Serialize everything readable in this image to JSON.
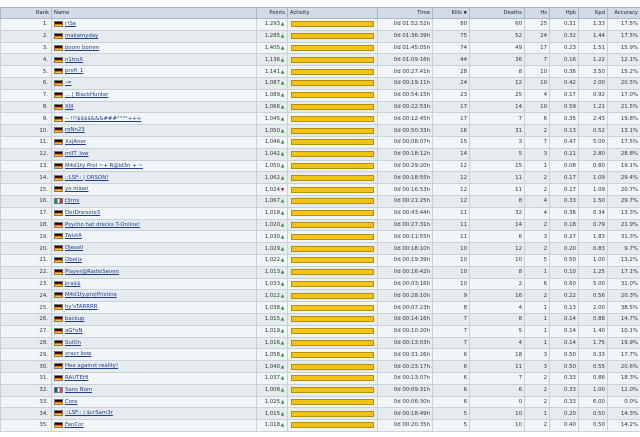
{
  "columns": {
    "rank": "Rank",
    "name": "Name",
    "points": "Points",
    "activity": "Activity",
    "time": "Time",
    "kills": "Kills",
    "deaths": "Deaths",
    "hs": "Hs",
    "hpk": "Hpk",
    "kd": "Kpd",
    "accuracy": "Accuracy",
    "sort_arrow": "▼"
  },
  "trend_symbols": {
    "up": "▲",
    "down": "▼"
  },
  "players": [
    {
      "rank": "1.",
      "flag": "de",
      "name": "r!Se",
      "points": "1,293",
      "trend": "up",
      "activity": 1.0,
      "time": "0d 01:52:52h",
      "kills": "80",
      "deaths": "60",
      "hs": "25",
      "hpk": "0.31",
      "kd": "1.33",
      "acc": "17.5%"
    },
    {
      "rank": "2.",
      "flag": "de",
      "name": "makamyday",
      "points": "1,285",
      "trend": "up",
      "activity": 1.0,
      "time": "0d 01:36:39h",
      "kills": "75",
      "deaths": "52",
      "hs": "24",
      "deaths2": "",
      "hpk": "0.32",
      "kd": "1.44",
      "acc": "17.5%"
    },
    {
      "rank": "3.",
      "flag": "de",
      "name": "boom bomm",
      "points": "1,405",
      "trend": "up",
      "activity": 1.0,
      "time": "0d 01:45:05h",
      "kills": "74",
      "deaths": "49",
      "hs": "17",
      "hpk": "0.23",
      "kd": "1.51",
      "acc": "15.9%"
    },
    {
      "rank": "4.",
      "flag": "de",
      "name": "n1troX",
      "points": "1,136",
      "trend": "up",
      "activity": 1.0,
      "time": "0d 01:09:16h",
      "kills": "44",
      "deaths": "36",
      "hs": "7",
      "hpk": "0.16",
      "kd": "1.22",
      "acc": "12.1%"
    },
    {
      "rank": "5.",
      "flag": "de",
      "name": "profi_1",
      "points": "1,141",
      "trend": "up",
      "activity": 1.0,
      "time": "0d 00:27:41h",
      "kills": "28",
      "deaths": "8",
      "hs": "10",
      "hpk": "0.36",
      "kd": "3.50",
      "acc": "15.2%"
    },
    {
      "rank": "6.",
      "flag": "de",
      "name": "-=",
      "points": "1,087",
      "trend": "up",
      "activity": 1.0,
      "time": "0d 00:19:11h",
      "kills": "24",
      "deaths": "12",
      "hs": "10",
      "hpk": "0.42",
      "kd": "2.00",
      "acc": "20.5%"
    },
    {
      "rank": "7.",
      "flag": "de",
      "name": "... | BlackHunter",
      "points": "1,089",
      "trend": "up",
      "activity": 1.0,
      "time": "0d 00:54:15h",
      "kills": "23",
      "deaths": "25",
      "hs": "4",
      "hpk": "0.17",
      "kd": "0.92",
      "acc": "17.0%"
    },
    {
      "rank": "8.",
      "flag": "de",
      "name": "XIII",
      "points": "1,066",
      "trend": "up",
      "activity": 1.0,
      "time": "0d 00:22:53h",
      "kills": "17",
      "deaths": "14",
      "hs": "10",
      "hpk": "0.59",
      "kd": "1.21",
      "acc": "21.5%"
    },
    {
      "rank": "9.",
      "flag": "de",
      "name": "-- !!!$$$$&&&###°°°°+++",
      "points": "1,045",
      "trend": "up",
      "activity": 1.0,
      "time": "0d 00:12:45h",
      "kills": "17",
      "deaths": "7",
      "hs": "6",
      "hpk": "0.35",
      "kd": "2.43",
      "acc": "19.8%"
    },
    {
      "rank": "10.",
      "flag": "de",
      "name": "roNn23",
      "points": "1,050",
      "trend": "up",
      "activity": 1.0,
      "time": "0d 00:50:33h",
      "kills": "16",
      "deaths": "31",
      "hs": "2",
      "hpk": "0.13",
      "kd": "0.52",
      "acc": "13.1%"
    },
    {
      "rank": "11.",
      "flag": "de",
      "name": "XxjAner",
      "points": "1,046",
      "trend": "up",
      "activity": 1.0,
      "time": "0d 00:08:07h",
      "kills": "15",
      "deaths": "3",
      "hs": "7",
      "hpk": "0.47",
      "kd": "5.00",
      "acc": "17.5%"
    },
    {
      "rank": "12.",
      "flag": "de",
      "name": "mlIT_low",
      "points": "1,042",
      "trend": "up",
      "activity": 1.0,
      "time": "0d 00:18:12h",
      "kills": "14",
      "deaths": "5",
      "hs": "3",
      "hpk": "0.21",
      "kd": "2.80",
      "acc": "28.8%"
    },
    {
      "rank": "13.",
      "flag": "de",
      "name": "M4d1ty Prol ~+ R@ld3n + ~",
      "points": "1,050",
      "trend": "up",
      "activity": 1.0,
      "time": "0d 00:29:20h",
      "kills": "12",
      "deaths": "15",
      "hs": "1",
      "hpk": "0.08",
      "kd": "0.80",
      "acc": "19.1%"
    },
    {
      "rank": "14.",
      "flag": "de",
      "name": "::LSF:: | ORSON!",
      "points": "1,062",
      "trend": "up",
      "activity": 1.0,
      "time": "0d 00:18:55h",
      "kills": "12",
      "deaths": "11",
      "hs": "2",
      "hpk": "0.17",
      "kd": "1.09",
      "acc": "29.4%"
    },
    {
      "rank": "15.",
      "flag": "de",
      "name": "yo maan",
      "points": "1,024",
      "trend": "down",
      "activity": 1.0,
      "time": "0d 00:16:53h",
      "kills": "12",
      "deaths": "11",
      "hs": "2",
      "hpk": "0.17",
      "kd": "1.09",
      "acc": "20.7%"
    },
    {
      "rank": "16.",
      "flag": "it",
      "name": "t3rmi",
      "points": "1,067",
      "trend": "up",
      "activity": 1.0,
      "time": "0d 00:21:25h",
      "kills": "12",
      "deaths": "8",
      "hs": "4",
      "hpk": "0.33",
      "kd": "1.50",
      "acc": "29.7%"
    },
    {
      "rank": "17.",
      "flag": "de",
      "name": "DerDreisste3",
      "points": "1,018",
      "trend": "up",
      "activity": 1.0,
      "time": "0d 00:43:44h",
      "kills": "11",
      "deaths": "32",
      "hs": "4",
      "hpk": "0.36",
      "kd": "0.34",
      "acc": "13.3%"
    },
    {
      "rank": "18.",
      "flag": "de",
      "name": "Psycho hat drecks T-Online!",
      "points": "1,020",
      "trend": "up",
      "activity": 1.0,
      "time": "0d 00:27:31h",
      "kills": "11",
      "deaths": "14",
      "hs": "2",
      "hpk": "0.18",
      "kd": "0.79",
      "acc": "21.9%"
    },
    {
      "rank": "19.",
      "flag": "de",
      "name": "TwistA",
      "points": "1,030",
      "trend": "up",
      "activity": 1.0,
      "time": "0d 00:11:55h",
      "kills": "11",
      "deaths": "6",
      "hs": "3",
      "hpk": "0.27",
      "kd": "1.83",
      "acc": "31.3%"
    },
    {
      "rank": "20.",
      "flag": "de",
      "name": "DJesell",
      "points": "1,029",
      "trend": "up",
      "activity": 1.0,
      "time": "0d 00:18:10h",
      "kills": "10",
      "deaths": "12",
      "hs": "2",
      "hpk": "0.20",
      "kd": "0.83",
      "acc": "9.7%"
    },
    {
      "rank": "21.",
      "flag": "de",
      "name": "Obelix",
      "points": "1,022",
      "trend": "up",
      "activity": 1.0,
      "time": "0d 00:19:39h",
      "kills": "10",
      "deaths": "10",
      "hs": "5",
      "hpk": "0.50",
      "kd": "1.00",
      "acc": "13.2%"
    },
    {
      "rank": "22.",
      "flag": "de",
      "name": "Player@RadioSeven",
      "points": "1,013",
      "trend": "up",
      "activity": 1.0,
      "time": "0d 00:16:42h",
      "kills": "10",
      "deaths": "8",
      "hs": "1",
      "hpk": "0.10",
      "kd": "1.25",
      "acc": "17.1%"
    },
    {
      "rank": "23.",
      "flag": "de",
      "name": "kra$$",
      "points": "1,033",
      "trend": "up",
      "activity": 1.0,
      "time": "0d 00:03:16h",
      "kills": "10",
      "deaths": "2",
      "hs": "6",
      "hpk": "0.60",
      "kd": "5.00",
      "acc": "31.0%"
    },
    {
      "rank": "24.",
      "flag": "de",
      "name": "M4d1ty.pro|Pristine",
      "points": "1,012",
      "trend": "up",
      "activity": 1.0,
      "time": "0d 00:28:10h",
      "kills": "9",
      "deaths": "16",
      "hs": "2",
      "hpk": "0.22",
      "kd": "0.56",
      "acc": "20.3%"
    },
    {
      "rank": "25.",
      "flag": "de",
      "name": "hy'sTARRRR",
      "points": "1,038",
      "trend": "up",
      "activity": 1.0,
      "time": "0d 00:07:23h",
      "kills": "8",
      "deaths": "4",
      "hs": "1",
      "hpk": "0.13",
      "kd": "2.00",
      "acc": "38.5%"
    },
    {
      "rank": "26.",
      "flag": "de",
      "name": "backup",
      "points": "1,015",
      "trend": "up",
      "activity": 1.0,
      "time": "0d 00:14:16h",
      "kills": "7",
      "deaths": "8",
      "hs": "1",
      "hpk": "0.14",
      "kd": "0.88",
      "acc": "14.7%"
    },
    {
      "rank": "27.",
      "flag": "de",
      "name": "aG*oN",
      "points": "1,019",
      "trend": "up",
      "activity": 1.0,
      "time": "0d 00:10:20h",
      "kills": "7",
      "deaths": "5",
      "hs": "1",
      "hpk": "0.14",
      "kd": "1.40",
      "acc": "10.1%"
    },
    {
      "rank": "28.",
      "flag": "de",
      "name": "SulOn",
      "points": "1,016",
      "trend": "up",
      "activity": 1.0,
      "time": "0d 00:13:03h",
      "kills": "7",
      "deaths": "4",
      "hs": "1",
      "hpk": "0.14",
      "kd": "1.75",
      "acc": "19.9%"
    },
    {
      "rank": "29.",
      "flag": "de",
      "name": "xracr kow",
      "points": "1,058",
      "trend": "up",
      "activity": 1.0,
      "time": "0d 00:31:26h",
      "kills": "6",
      "deaths": "18",
      "hs": "3",
      "hpk": "0.50",
      "kd": "0.33",
      "acc": "17.7%"
    },
    {
      "rank": "30.",
      "flag": "de",
      "name": "Hee against reality!",
      "points": "1,040",
      "trend": "up",
      "activity": 1.0,
      "time": "0d 00:23:17h",
      "kills": "6",
      "deaths": "11",
      "hs": "3",
      "hpk": "0.50",
      "kd": "0.55",
      "acc": "20.6%"
    },
    {
      "rank": "31.",
      "flag": "de",
      "name": "RAUTEHI",
      "points": "1,037",
      "trend": "up",
      "activity": 1.0,
      "time": "0d 00:13:07h",
      "kills": "6",
      "deaths": "7",
      "hs": "2",
      "hpk": "0.33",
      "kd": "0.86",
      "acc": "18.3%"
    },
    {
      "rank": "32.",
      "flag": "fr",
      "name": "Sans Nom",
      "points": "1,008",
      "trend": "up",
      "activity": 1.0,
      "time": "0d 00:09:31h",
      "kills": "6",
      "deaths": "6",
      "hs": "2",
      "hpk": "0.33",
      "kd": "1.00",
      "acc": "12.0%"
    },
    {
      "rank": "33.",
      "flag": "de",
      "name": "Core",
      "points": "1,025",
      "trend": "up",
      "activity": 1.0,
      "time": "0d 00:06:30h",
      "kills": "6",
      "deaths": "0",
      "hs": "2",
      "hpk": "0.33",
      "kd": "6.00",
      "acc": "0.0%"
    },
    {
      "rank": "34.",
      "flag": "de",
      "name": "::LSF:: | $crSam3r",
      "points": "1,015",
      "trend": "up",
      "activity": 1.0,
      "time": "0d 00:18:49h",
      "kills": "5",
      "deaths": "10",
      "hs": "1",
      "hpk": "0.20",
      "kd": "0.50",
      "acc": "14.3%"
    },
    {
      "rank": "35.",
      "flag": "de",
      "name": "FanCor",
      "points": "1,018",
      "trend": "up",
      "activity": 1.0,
      "time": "0d 00:20:35h",
      "kills": "5",
      "deaths": "10",
      "hs": "2",
      "hpk": "0.40",
      "kd": "0.50",
      "acc": "14.2%"
    }
  ]
}
